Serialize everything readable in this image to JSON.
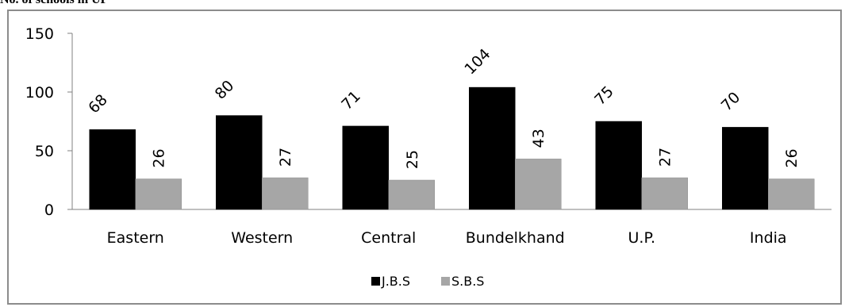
{
  "heading": "No. of schools in UP",
  "colors": {
    "jbs": "#000000",
    "sbs": "#a6a6a6",
    "axis": "#808080"
  },
  "chart_data": {
    "type": "bar",
    "categories": [
      "Eastern",
      "Western",
      "Central",
      "Bundelkhand",
      "U.P.",
      "India"
    ],
    "series": [
      {
        "name": "J.B.S",
        "values": [
          68,
          80,
          71,
          104,
          75,
          70
        ]
      },
      {
        "name": "S.B.S",
        "values": [
          26,
          27,
          25,
          43,
          27,
          26
        ]
      }
    ],
    "yticks": [
      0,
      50,
      100,
      150
    ],
    "ylim": [
      0,
      150
    ],
    "grid": false,
    "legend": "bottom",
    "title": "",
    "xlabel": "",
    "ylabel": ""
  }
}
